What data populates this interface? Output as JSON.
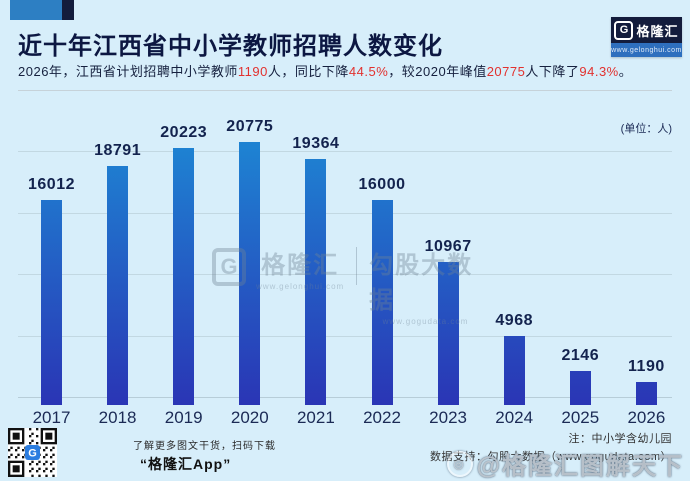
{
  "header": {
    "title": "近十年江西省中小学教师招聘人数变化",
    "subtitle_parts": [
      {
        "text": "2026年，江西省计划招聘中小学教师",
        "highlight": false
      },
      {
        "text": "1190",
        "highlight": true
      },
      {
        "text": "人，同比下降",
        "highlight": false
      },
      {
        "text": "44.5%",
        "highlight": true
      },
      {
        "text": "，较2020年峰值",
        "highlight": false
      },
      {
        "text": "20775",
        "highlight": true
      },
      {
        "text": "人下降了",
        "highlight": false
      },
      {
        "text": "94.3%",
        "highlight": true
      },
      {
        "text": "。",
        "highlight": false
      }
    ],
    "logo": {
      "glyph": "G",
      "brand": "格隆汇",
      "url": "www.gelonghui.com"
    }
  },
  "chart": {
    "unit_label": "(单位：人)"
  },
  "chart_data": {
    "type": "bar",
    "categories": [
      "2017",
      "2018",
      "2019",
      "2020",
      "2021",
      "2022",
      "2023",
      "2024",
      "2025",
      "2026"
    ],
    "values": [
      16012,
      18791,
      20223,
      20775,
      19364,
      16000,
      10967,
      4968,
      2146,
      1190
    ],
    "title": "近十年江西省中小学教师招聘人数变化",
    "xlabel": "",
    "ylabel": "人",
    "ylim": [
      0,
      20775
    ],
    "gridline_values": [
      5000,
      10000,
      15000,
      20000
    ],
    "grid": true,
    "legend": false,
    "data_labels": true
  },
  "watermark_center": {
    "glyph": "G",
    "brand": "格隆汇",
    "brand_url": "www.gelonghui.com",
    "partner": "勾股大数据",
    "partner_url": "www.gogudata.com"
  },
  "footer": {
    "qr_caption_line1": "了解更多图文干货，扫码下载",
    "qr_caption_line2": "“格隆汇App”",
    "note": "注：中小学含幼儿园",
    "data_support": "数据支持：勾股大数据（www.gogudata.com）",
    "corner_watermark": "@格隆汇图解天下"
  },
  "colors": {
    "background": "#d7eefa",
    "title_text": "#0c1742",
    "accent_red": "#e2312e",
    "bar_gradient_top": "#1e82d2",
    "bar_gradient_bottom": "#2a35b5",
    "brand_blue": "#2d7fc3",
    "brand_navy": "#131c3c"
  }
}
